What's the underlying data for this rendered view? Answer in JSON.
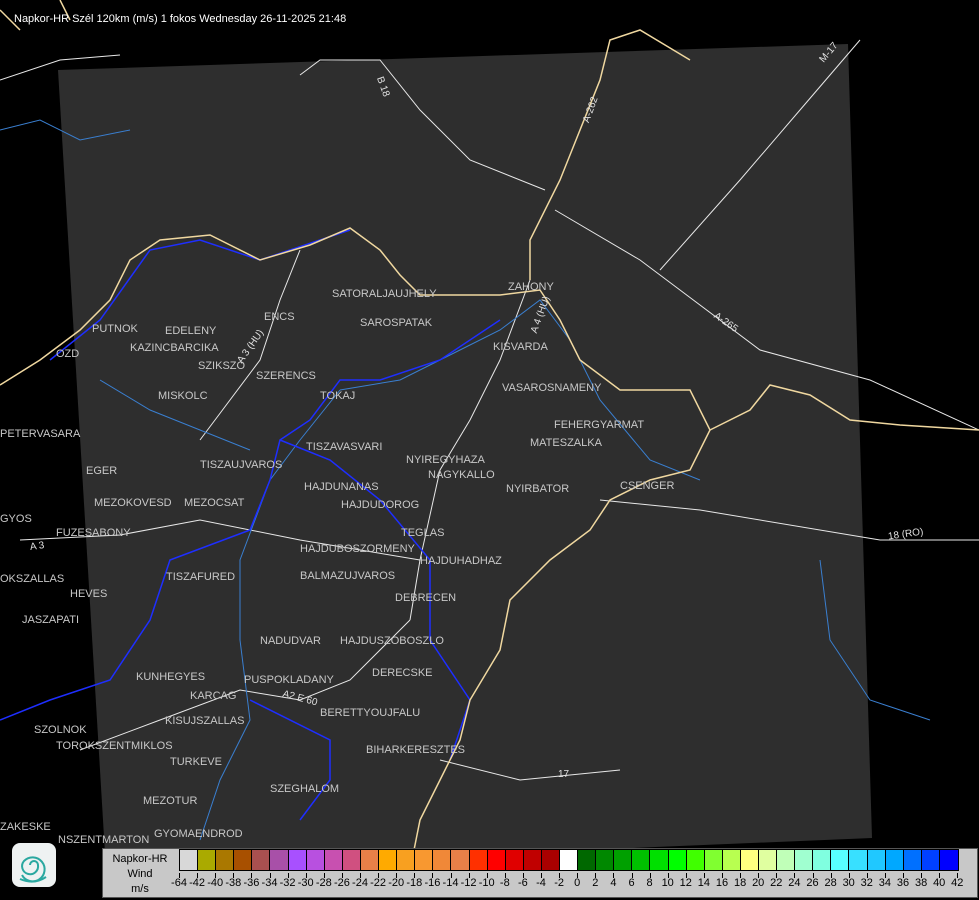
{
  "title": "Napkor-HR Szél 120km (m/s) 1 fokos Wednesday 26-11-2025 21:48",
  "colors": {
    "background": "#000000",
    "radar_area": "#2e2e2e",
    "rivers": "#3a7fd0",
    "country_border": "#f0d8a0",
    "county_border": "#1e2eff",
    "roads": "#e8e8e8"
  },
  "cities": [
    "SATORALJAUJHELY",
    "ZAHONY",
    "SAROSPATAK",
    "PUTNOK",
    "EDELENY",
    "ENCS",
    "KAZINCBARCIKA",
    "KISVARDA",
    "SZIKSZO",
    "SZERENCS",
    "VASAROSNAMENY",
    "MISKOLC",
    "TOKAJ",
    "PETERVASARA",
    "FEHERGYARMAT",
    "MATESZALKA",
    "TISZAVASVARI",
    "NYIREGYHAZA",
    "TISZAUJVAROS",
    "EGER",
    "NAGYKALLO",
    "HAJDUNANAS",
    "NYIRBATOR",
    "CSENGER",
    "HAJDUDOROG",
    "MEZOKOVESD",
    "MEZOCSAT",
    "GYOS",
    "FUZESABONY",
    "TEGLAS",
    "HAJDUBOSZORMENY",
    "HAJDUHADHAZ",
    "HEVES",
    "TISZAFURED",
    "BALMAZUJVAROS",
    "OKSZALLAS",
    "JASZAPATI",
    "DEBRECEN",
    "NADUDVAR",
    "HAJDUSZOBOSZLO",
    "KUNHEGYES",
    "KARCAG",
    "PUSPOKLADANY",
    "DERECSKE",
    "KISUJSZALLAS",
    "BERETTYOUJFALU",
    "SZOLNOK",
    "TOROKSZENTMIKLOS",
    "BIHARKERESZTES",
    "TURKEVE",
    "SZEGHALOM",
    "MEZOTUR",
    "ZAKESKE",
    "GYOMAENDROD",
    "OZD",
    "NSZENTMARTON"
  ],
  "roads": [
    "B 18",
    "A-262",
    "M-17",
    "A-265",
    "18 (RO)",
    "A 4 (HU)",
    "A 3 (HU)",
    "A 3",
    "17",
    "A2 E 60"
  ],
  "legend": {
    "title_lines": [
      "Napkor-HR",
      "Wind",
      "m/s"
    ],
    "labels": [
      "-64",
      "-42",
      "-40",
      "-38",
      "-36",
      "-34",
      "-32",
      "-30",
      "-28",
      "-26",
      "-24",
      "-22",
      "-20",
      "-18",
      "-16",
      "-14",
      "-12",
      "-10",
      "-8",
      "-6",
      "-4",
      "-2",
      "0",
      "2",
      "4",
      "6",
      "8",
      "10",
      "12",
      "14",
      "16",
      "18",
      "20",
      "22",
      "24",
      "26",
      "28",
      "30",
      "32",
      "34",
      "36",
      "38",
      "40",
      "42"
    ],
    "colors": [
      "#d8d8d8",
      "#aaaa00",
      "#aa7800",
      "#a85000",
      "#a85050",
      "#a850a8",
      "#a850ff",
      "#b850e0",
      "#c850b0",
      "#d05080",
      "#e88048",
      "#ffaa00",
      "#f8a020",
      "#f89830",
      "#f08838",
      "#e88048",
      "#ff3000",
      "#ff0000",
      "#e00000",
      "#c00000",
      "#a80000",
      "#ffffff",
      "#006800",
      "#008800",
      "#00a000",
      "#00c000",
      "#00e000",
      "#00ff00",
      "#40ff00",
      "#80ff30",
      "#b8ff50",
      "#ffff80",
      "#e0ffa0",
      "#c0ffb8",
      "#a0ffd0",
      "#80ffe0",
      "#58ffff",
      "#38e0ff",
      "#20c8ff",
      "#00a8ff",
      "#0070ff",
      "#0040ff",
      "#0000ff"
    ]
  }
}
